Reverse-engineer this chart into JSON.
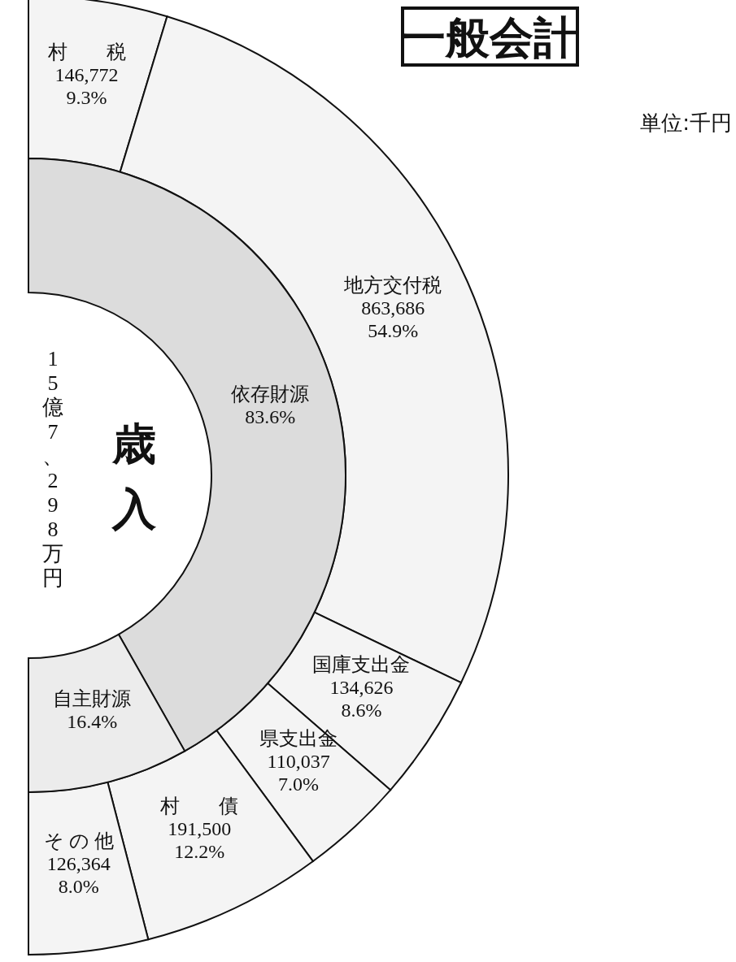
{
  "chart_data": [
    {
      "type": "donut",
      "title": "一般会計",
      "annotations": [
        "単位:千円"
      ],
      "categories": [
        "村　　税",
        "地方交付税",
        "国庫支出金",
        "県支出金",
        "村　　債",
        "そ の 他"
      ],
      "values": [
        146772,
        863686,
        134626,
        110037,
        191500,
        126364
      ],
      "value_labels": [
        "146,772\n9.3%",
        "863,686\n54.9%",
        "134,626\n8.6%",
        "110,037\n7.0%",
        "191,500\n12.2%",
        "126,364\n8.0%"
      ],
      "colors": [
        "#f4f4f4",
        "#f4f4f4",
        "#f4f4f4",
        "#f4f4f4",
        "#f4f4f4",
        "#f4f4f4"
      ]
    },
    {
      "type": "donut",
      "title": "歳入",
      "subtitle": "15億7、298万円",
      "categories": [
        "依存財源",
        "自主財源"
      ],
      "values": [
        83.6,
        16.4
      ],
      "value_labels": [
        "83.6%",
        "16.4%"
      ],
      "colors": [
        "#dcdcdc",
        "#ececec"
      ]
    }
  ]
}
